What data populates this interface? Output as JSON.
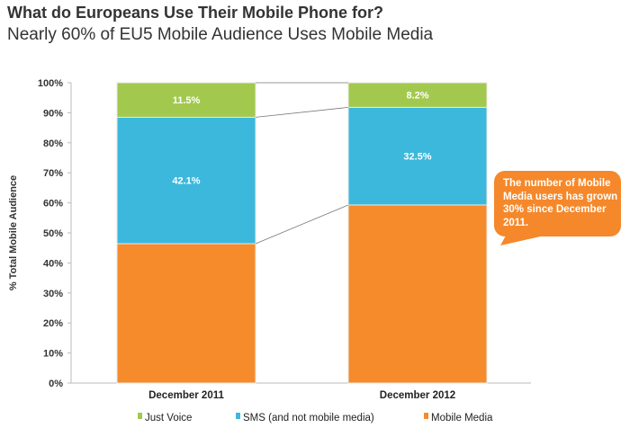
{
  "title": "What do Europeans Use Their Mobile Phone for?",
  "subtitle": "Nearly 60% of EU5 Mobile Audience Uses Mobile Media",
  "callout": "The number of Mobile Media users has grown 30% since December 2011.",
  "chart_data": {
    "type": "bar",
    "stacked": true,
    "ylabel": "% Total Mobile Audience",
    "ylim": [
      0,
      100
    ],
    "yticks": [
      "0%",
      "10%",
      "20%",
      "30%",
      "40%",
      "50%",
      "60%",
      "70%",
      "80%",
      "90%",
      "100%"
    ],
    "categories": [
      "December 2011",
      "December 2012"
    ],
    "series": [
      {
        "name": "Mobile Media",
        "color": "#f68b2c",
        "values": [
          46.4,
          59.3
        ],
        "labels": [
          "",
          ""
        ]
      },
      {
        "name": "SMS (and not mobile media)",
        "color": "#3cb8dd",
        "values": [
          42.1,
          32.5
        ],
        "labels": [
          "42.1%",
          "32.5%"
        ]
      },
      {
        "name": "Just Voice",
        "color": "#a2c94d",
        "values": [
          11.5,
          8.2
        ],
        "labels": [
          "11.5%",
          "8.2%"
        ]
      }
    ],
    "legend": [
      "Just Voice",
      "SMS (and not mobile media)",
      "Mobile Media"
    ],
    "legend_position": "bottom",
    "grid": false
  }
}
